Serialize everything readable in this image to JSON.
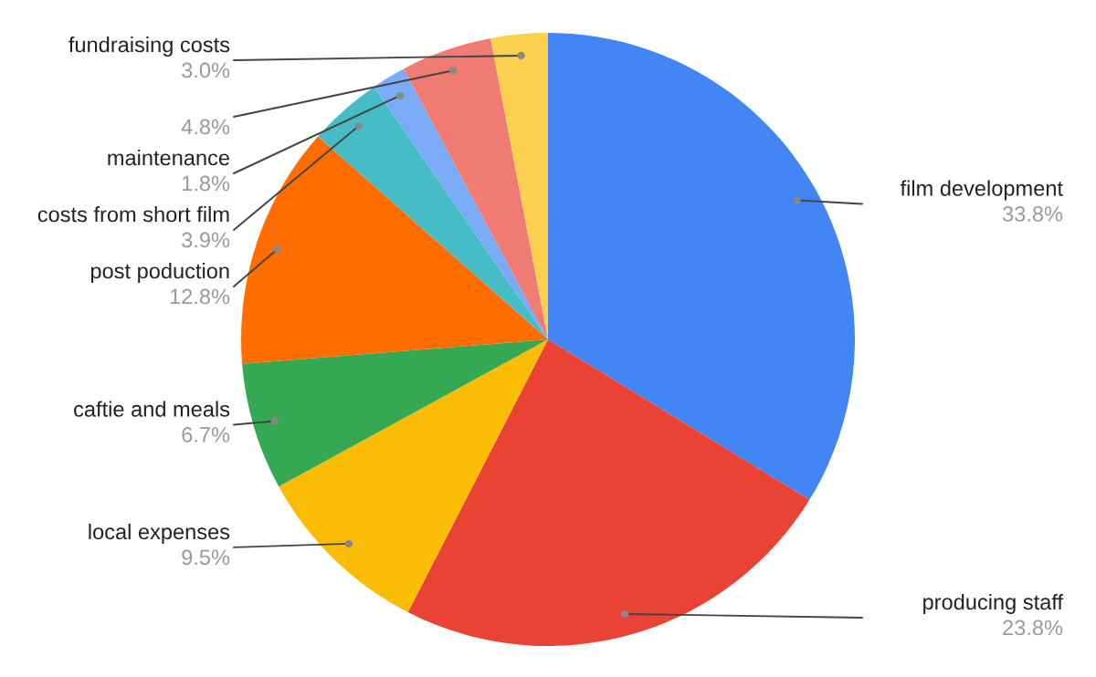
{
  "chart_data": {
    "type": "pie",
    "categories": [
      "film development",
      "producing staff",
      "local expenses",
      "caftie and meals",
      "post poduction",
      "costs from short film",
      "maintenance",
      null,
      "fundraising costs"
    ],
    "values": [
      33.8,
      23.8,
      9.5,
      6.7,
      12.8,
      3.9,
      1.8,
      4.8,
      3.0
    ],
    "colors": [
      "#4285f4",
      "#ea4335",
      "#fbbc04",
      "#34a853",
      "#ff6d01",
      "#46bdc6",
      "#7baaf7",
      "#f07b72",
      "#fcd04f"
    ],
    "value_labels": [
      "33.8%",
      "23.8%",
      "9.5%",
      "6.7%",
      "12.8%",
      "3.9%",
      "1.8%",
      "4.8%",
      "3.0%"
    ]
  }
}
